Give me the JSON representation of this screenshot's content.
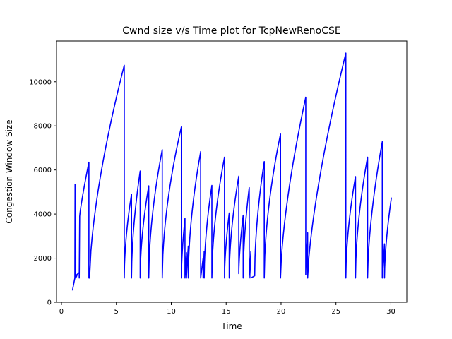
{
  "chart_data": {
    "type": "line",
    "title": "Cwnd size v/s Time plot for TcpNewRenoCSE",
    "xlabel": "Time",
    "ylabel": "Congestion Window Size",
    "xlim": [
      -0.45,
      31.45
    ],
    "ylim": [
      0,
      11850
    ],
    "xticks": [
      0,
      5,
      10,
      15,
      20,
      25,
      30
    ],
    "yticks": [
      0,
      2000,
      4000,
      6000,
      8000,
      10000
    ],
    "grid": false,
    "color": "#0000ff",
    "series": [
      {
        "segments": [
          {
            "t0": 1.0,
            "t1": 1.22,
            "v0": 536,
            "v1": 1100,
            "k": 1.0
          },
          {
            "t0": 1.22,
            "t1": 1.24,
            "v0": 1100,
            "v1": 5350,
            "k": 1.0
          },
          {
            "t0": 1.24,
            "t1": 1.28,
            "v0": 2150,
            "v1": 2150,
            "k": 1.0
          },
          {
            "t0": 1.28,
            "t1": 1.3,
            "v0": 2150,
            "v1": 3550,
            "k": 1.0
          },
          {
            "t0": 1.3,
            "t1": 1.4,
            "v0": 1100,
            "v1": 1200,
            "k": 1.0
          },
          {
            "t0": 1.4,
            "t1": 1.62,
            "v0": 1250,
            "v1": 1350,
            "k": 1.0
          },
          {
            "t0": 1.62,
            "t1": 1.66,
            "v0": 1100,
            "v1": 3900,
            "k": 1.0
          },
          {
            "t0": 1.66,
            "t1": 2.5,
            "v0": 3900,
            "v1": 6350,
            "k": 0.85
          },
          {
            "t0": 2.5,
            "t1": 2.58,
            "v0": 1100,
            "v1": 1100,
            "k": 1.0
          },
          {
            "t0": 2.58,
            "t1": 5.72,
            "v0": 1300,
            "v1": 10750,
            "k": 0.65
          },
          {
            "t0": 5.72,
            "t1": 6.38,
            "v0": 1100,
            "v1": 4900,
            "k": 0.55
          },
          {
            "t0": 6.38,
            "t1": 7.17,
            "v0": 1100,
            "v1": 5950,
            "k": 0.55
          },
          {
            "t0": 7.17,
            "t1": 7.95,
            "v0": 1100,
            "v1": 5280,
            "k": 0.55
          },
          {
            "t0": 7.95,
            "t1": 9.18,
            "v0": 1100,
            "v1": 6920,
            "k": 0.55
          },
          {
            "t0": 9.18,
            "t1": 10.92,
            "v0": 1100,
            "v1": 7950,
            "k": 0.55
          },
          {
            "t0": 10.92,
            "t1": 11.25,
            "v0": 1100,
            "v1": 3800,
            "k": 0.6
          },
          {
            "t0": 11.25,
            "t1": 11.38,
            "v0": 1100,
            "v1": 2250,
            "k": 1.0
          },
          {
            "t0": 11.38,
            "t1": 11.55,
            "v0": 1100,
            "v1": 2550,
            "k": 1.0
          },
          {
            "t0": 11.55,
            "t1": 12.68,
            "v0": 1100,
            "v1": 6830,
            "k": 0.55
          },
          {
            "t0": 12.68,
            "t1": 12.9,
            "v0": 1100,
            "v1": 2000,
            "k": 1.0
          },
          {
            "t0": 12.9,
            "t1": 13.0,
            "v0": 1100,
            "v1": 2300,
            "k": 1.0
          },
          {
            "t0": 13.0,
            "t1": 13.7,
            "v0": 1100,
            "v1": 5300,
            "k": 0.55
          },
          {
            "t0": 13.7,
            "t1": 14.85,
            "v0": 1100,
            "v1": 6580,
            "k": 0.55
          },
          {
            "t0": 14.85,
            "t1": 15.28,
            "v0": 1100,
            "v1": 4050,
            "k": 0.6
          },
          {
            "t0": 15.28,
            "t1": 16.15,
            "v0": 1100,
            "v1": 5720,
            "k": 0.55
          },
          {
            "t0": 16.15,
            "t1": 16.55,
            "v0": 1300,
            "v1": 3950,
            "k": 0.65
          },
          {
            "t0": 16.55,
            "t1": 17.1,
            "v0": 1100,
            "v1": 5200,
            "k": 0.55
          },
          {
            "t0": 17.1,
            "t1": 17.25,
            "v0": 1100,
            "v1": 2300,
            "k": 1.0
          },
          {
            "t0": 17.25,
            "t1": 17.6,
            "v0": 1100,
            "v1": 1200,
            "k": 1.0
          },
          {
            "t0": 17.6,
            "t1": 18.47,
            "v0": 1250,
            "v1": 6380,
            "k": 0.55
          },
          {
            "t0": 18.47,
            "t1": 19.95,
            "v0": 1100,
            "v1": 7630,
            "k": 0.55
          },
          {
            "t0": 19.95,
            "t1": 22.25,
            "v0": 1100,
            "v1": 9300,
            "k": 0.65
          },
          {
            "t0": 22.25,
            "t1": 22.42,
            "v0": 1250,
            "v1": 3150,
            "k": 0.7
          },
          {
            "t0": 22.42,
            "t1": 25.9,
            "v0": 1100,
            "v1": 11300,
            "k": 0.7
          },
          {
            "t0": 25.9,
            "t1": 26.78,
            "v0": 1100,
            "v1": 5700,
            "k": 0.55
          },
          {
            "t0": 26.78,
            "t1": 27.88,
            "v0": 1100,
            "v1": 6580,
            "k": 0.55
          },
          {
            "t0": 27.88,
            "t1": 29.22,
            "v0": 1100,
            "v1": 7280,
            "k": 0.6
          },
          {
            "t0": 29.22,
            "t1": 29.42,
            "v0": 1100,
            "v1": 2650,
            "k": 1.0
          },
          {
            "t0": 29.42,
            "t1": 30.05,
            "v0": 1100,
            "v1": 4750,
            "k": 0.6
          }
        ]
      }
    ]
  }
}
